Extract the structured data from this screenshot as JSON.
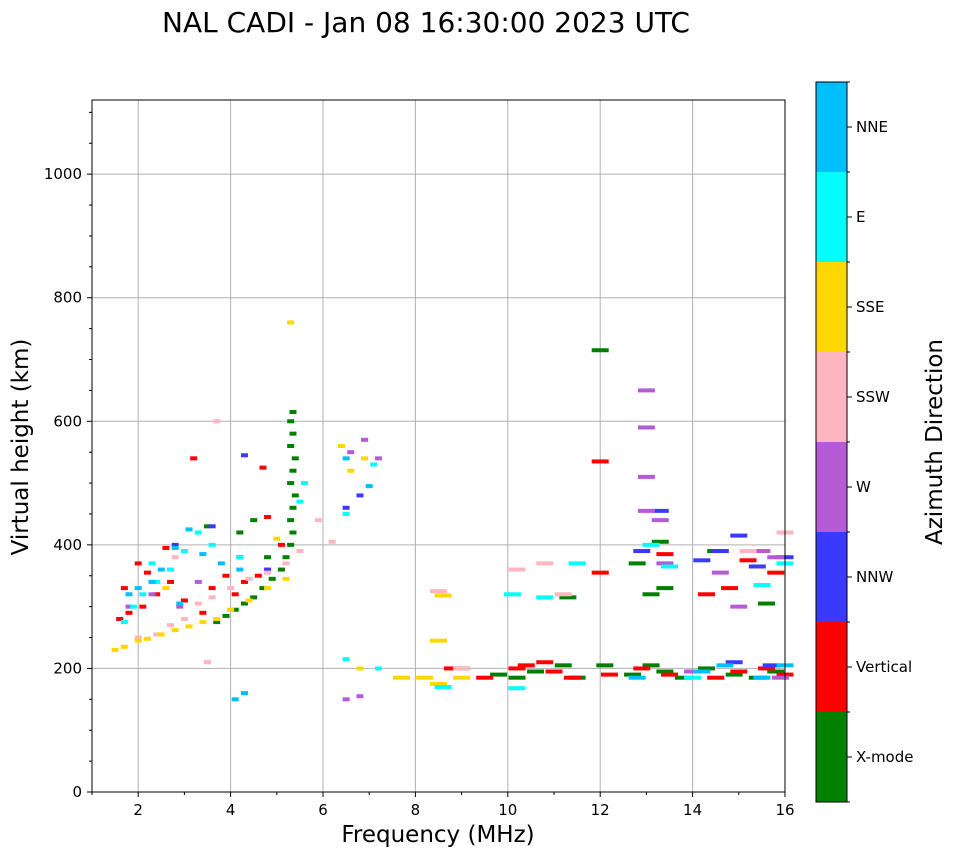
{
  "chart_data": {
    "type": "scatter",
    "title": "NAL CADI - Jan 08 16:30:00 2023 UTC",
    "xlabel": "Frequency (MHz)",
    "ylabel": "Virtual height (km)",
    "xlim": [
      1,
      16
    ],
    "ylim": [
      0,
      1120
    ],
    "xticks": [
      2,
      4,
      6,
      8,
      10,
      12,
      14,
      16
    ],
    "yticks": [
      0,
      200,
      400,
      600,
      800,
      1000
    ],
    "grid": true,
    "colorbar": {
      "label": "Azimuth Direction",
      "categories": [
        "X-mode",
        "Vertical",
        "NNW",
        "W",
        "SSW",
        "SSE",
        "E",
        "NNE"
      ],
      "colors": [
        "#008000",
        "#ff0000",
        "#3a3aff",
        "#b65bd6",
        "#ffb6c1",
        "#ffd700",
        "#00ffff",
        "#00bfff"
      ]
    },
    "series": [
      {
        "name": "X-mode",
        "points": [
          [
            3.7,
            275
          ],
          [
            3.9,
            285
          ],
          [
            4.1,
            295
          ],
          [
            4.3,
            305
          ],
          [
            4.5,
            315
          ],
          [
            4.7,
            330
          ],
          [
            4.9,
            345
          ],
          [
            5.1,
            360
          ],
          [
            5.2,
            380
          ],
          [
            5.3,
            400
          ],
          [
            5.35,
            420
          ],
          [
            5.3,
            440
          ],
          [
            5.35,
            460
          ],
          [
            5.4,
            480
          ],
          [
            5.3,
            500
          ],
          [
            5.35,
            520
          ],
          [
            5.4,
            540
          ],
          [
            5.3,
            560
          ],
          [
            5.35,
            580
          ],
          [
            5.3,
            600
          ],
          [
            5.35,
            615
          ],
          [
            4.2,
            420
          ],
          [
            4.5,
            440
          ],
          [
            3.5,
            430
          ],
          [
            4.8,
            380
          ],
          [
            9.0,
            200
          ],
          [
            9.8,
            190
          ],
          [
            10.2,
            185
          ],
          [
            10.6,
            195
          ],
          [
            11.2,
            205
          ],
          [
            11.5,
            185
          ],
          [
            12.1,
            205
          ],
          [
            12.7,
            190
          ],
          [
            13.1,
            205
          ],
          [
            13.4,
            195
          ],
          [
            13.8,
            185
          ],
          [
            14.3,
            200
          ],
          [
            14.9,
            190
          ],
          [
            15.4,
            185
          ],
          [
            15.8,
            195
          ],
          [
            12.8,
            370
          ],
          [
            13.3,
            405
          ],
          [
            13.4,
            330
          ],
          [
            13.1,
            320
          ],
          [
            14.5,
            390
          ],
          [
            15.6,
            305
          ],
          [
            11.3,
            315
          ],
          [
            12.0,
            715
          ]
        ]
      },
      {
        "name": "Vertical",
        "points": [
          [
            1.6,
            280
          ],
          [
            1.8,
            290
          ],
          [
            2.1,
            300
          ],
          [
            2.4,
            320
          ],
          [
            2.7,
            340
          ],
          [
            3.0,
            310
          ],
          [
            3.4,
            290
          ],
          [
            3.6,
            330
          ],
          [
            3.9,
            350
          ],
          [
            4.1,
            320
          ],
          [
            4.3,
            340
          ],
          [
            4.6,
            350
          ],
          [
            4.7,
            525
          ],
          [
            4.8,
            445
          ],
          [
            5.1,
            400
          ],
          [
            2.2,
            355
          ],
          [
            2.0,
            370
          ],
          [
            2.6,
            395
          ],
          [
            3.2,
            540
          ],
          [
            4.2,
            380
          ],
          [
            1.7,
            330
          ],
          [
            8.8,
            200
          ],
          [
            9.5,
            185
          ],
          [
            10.2,
            200
          ],
          [
            10.4,
            205
          ],
          [
            10.8,
            210
          ],
          [
            11.0,
            195
          ],
          [
            11.4,
            185
          ],
          [
            12.2,
            190
          ],
          [
            12.9,
            200
          ],
          [
            13.5,
            190
          ],
          [
            14.5,
            185
          ],
          [
            15.0,
            195
          ],
          [
            15.6,
            200
          ],
          [
            16.0,
            190
          ],
          [
            12.0,
            535
          ],
          [
            12.0,
            355
          ],
          [
            13.4,
            385
          ],
          [
            14.3,
            320
          ],
          [
            14.8,
            330
          ],
          [
            15.2,
            375
          ],
          [
            15.8,
            355
          ]
        ]
      },
      {
        "name": "NNW",
        "points": [
          [
            6.5,
            460
          ],
          [
            6.8,
            480
          ],
          [
            3.6,
            430
          ],
          [
            2.8,
            400
          ],
          [
            4.8,
            360
          ],
          [
            4.3,
            545
          ],
          [
            12.9,
            390
          ],
          [
            13.3,
            455
          ],
          [
            14.2,
            375
          ],
          [
            14.6,
            390
          ],
          [
            15.0,
            415
          ],
          [
            15.4,
            365
          ],
          [
            16.0,
            380
          ],
          [
            14.9,
            210
          ],
          [
            15.7,
            205
          ]
        ]
      },
      {
        "name": "W",
        "points": [
          [
            6.5,
            150
          ],
          [
            6.8,
            155
          ],
          [
            2.3,
            320
          ],
          [
            2.9,
            300
          ],
          [
            3.3,
            340
          ],
          [
            1.8,
            300
          ],
          [
            6.9,
            570
          ],
          [
            6.6,
            550
          ],
          [
            7.2,
            540
          ],
          [
            13.0,
            650
          ],
          [
            13.0,
            590
          ],
          [
            13.0,
            510
          ],
          [
            13.0,
            455
          ],
          [
            13.3,
            440
          ],
          [
            13.4,
            370
          ],
          [
            14.6,
            355
          ],
          [
            15.0,
            300
          ],
          [
            15.8,
            380
          ],
          [
            15.5,
            390
          ],
          [
            15.9,
            185
          ],
          [
            14.0,
            195
          ]
        ]
      },
      {
        "name": "SSW",
        "points": [
          [
            2.4,
            255
          ],
          [
            2.7,
            270
          ],
          [
            3.0,
            280
          ],
          [
            3.3,
            305
          ],
          [
            3.6,
            315
          ],
          [
            4.0,
            330
          ],
          [
            4.4,
            345
          ],
          [
            4.8,
            355
          ],
          [
            5.2,
            370
          ],
          [
            5.5,
            390
          ],
          [
            5.9,
            440
          ],
          [
            6.2,
            405
          ],
          [
            3.7,
            600
          ],
          [
            2.0,
            250
          ],
          [
            2.8,
            380
          ],
          [
            3.5,
            210
          ],
          [
            8.5,
            325
          ],
          [
            9.0,
            200
          ],
          [
            10.2,
            360
          ],
          [
            10.8,
            370
          ],
          [
            11.2,
            320
          ],
          [
            15.2,
            390
          ],
          [
            16.0,
            420
          ]
        ]
      },
      {
        "name": "SSE",
        "points": [
          [
            1.5,
            230
          ],
          [
            1.7,
            235
          ],
          [
            2.0,
            245
          ],
          [
            2.2,
            248
          ],
          [
            2.5,
            255
          ],
          [
            2.8,
            262
          ],
          [
            3.1,
            268
          ],
          [
            3.4,
            275
          ],
          [
            3.7,
            280
          ],
          [
            4.0,
            295
          ],
          [
            4.4,
            310
          ],
          [
            4.8,
            330
          ],
          [
            5.0,
            410
          ],
          [
            5.2,
            345
          ],
          [
            6.4,
            560
          ],
          [
            6.6,
            520
          ],
          [
            6.9,
            540
          ],
          [
            5.3,
            760
          ],
          [
            2.6,
            330
          ],
          [
            7.7,
            185
          ],
          [
            8.2,
            185
          ],
          [
            8.5,
            175
          ],
          [
            8.5,
            245
          ],
          [
            8.6,
            318
          ],
          [
            9.0,
            185
          ],
          [
            6.8,
            200
          ]
        ]
      },
      {
        "name": "E",
        "points": [
          [
            1.7,
            275
          ],
          [
            1.9,
            300
          ],
          [
            2.1,
            320
          ],
          [
            2.4,
            340
          ],
          [
            2.7,
            360
          ],
          [
            3.0,
            390
          ],
          [
            3.3,
            420
          ],
          [
            3.6,
            400
          ],
          [
            4.2,
            380
          ],
          [
            5.5,
            470
          ],
          [
            5.6,
            500
          ],
          [
            6.5,
            215
          ],
          [
            7.2,
            200
          ],
          [
            6.5,
            450
          ],
          [
            7.1,
            530
          ],
          [
            2.3,
            370
          ],
          [
            8.6,
            170
          ],
          [
            10.2,
            168
          ],
          [
            10.1,
            320
          ],
          [
            10.8,
            315
          ],
          [
            11.5,
            370
          ],
          [
            13.1,
            400
          ],
          [
            13.5,
            365
          ],
          [
            14.0,
            185
          ],
          [
            15.5,
            335
          ],
          [
            16.0,
            370
          ]
        ]
      },
      {
        "name": "NNE",
        "points": [
          [
            1.8,
            320
          ],
          [
            2.0,
            330
          ],
          [
            2.3,
            340
          ],
          [
            2.5,
            360
          ],
          [
            2.8,
            395
          ],
          [
            3.1,
            425
          ],
          [
            3.4,
            385
          ],
          [
            3.8,
            370
          ],
          [
            4.2,
            360
          ],
          [
            4.3,
            160
          ],
          [
            4.1,
            150
          ],
          [
            6.5,
            540
          ],
          [
            7.0,
            495
          ],
          [
            2.9,
            305
          ],
          [
            12.8,
            185
          ],
          [
            14.2,
            195
          ],
          [
            15.5,
            185
          ],
          [
            16.0,
            205
          ],
          [
            14.7,
            205
          ]
        ]
      }
    ]
  }
}
